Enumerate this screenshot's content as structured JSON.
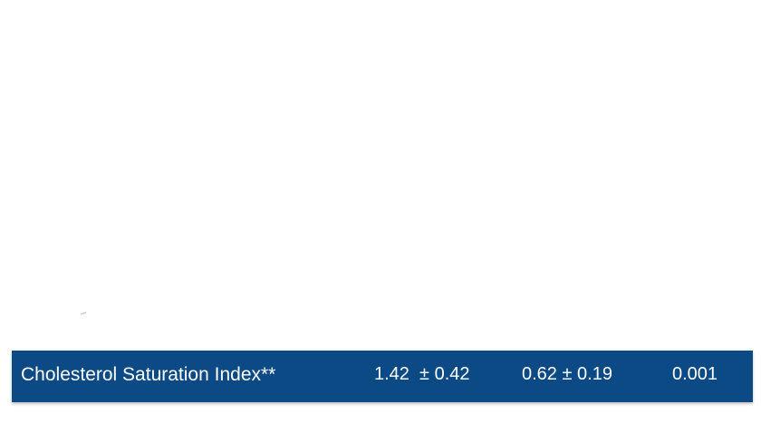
{
  "table": {
    "row": {
      "label": "Cholesterol Saturation Index**",
      "value_group_1": "1.42  ± 0.42",
      "value_group_2": "0.62 ± 0.19",
      "p_value": "0.001"
    }
  },
  "colors": {
    "row_background": "#0b4a85",
    "row_text": "#ffffff"
  }
}
